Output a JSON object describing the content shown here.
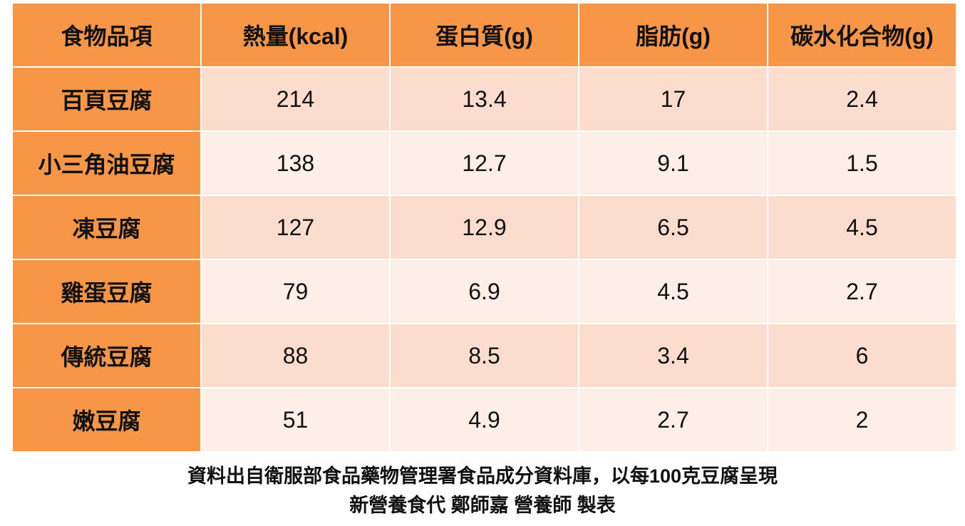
{
  "table": {
    "header": [
      "食物品項",
      "熱量(kcal)",
      "蛋白質(g)",
      "脂肪(g)",
      "碳水化合物(g)"
    ],
    "rows": [
      [
        "百頁豆腐",
        "214",
        "13.4",
        "17",
        "2.4"
      ],
      [
        "小三角油豆腐",
        "138",
        "12.7",
        "9.1",
        "1.5"
      ],
      [
        "凍豆腐",
        "127",
        "12.9",
        "6.5",
        "4.5"
      ],
      [
        "雞蛋豆腐",
        "79",
        "6.9",
        "4.5",
        "2.7"
      ],
      [
        "傳統豆腐",
        "88",
        "8.5",
        "3.4",
        "6"
      ],
      [
        "嫩豆腐",
        "51",
        "4.9",
        "2.7",
        "2"
      ]
    ]
  },
  "footer": {
    "source": "資料出自衛服部食品藥物管理署食品成分資料庫，以每100克豆腐呈現",
    "credit": "新營養食代 鄭師嘉 營養師 製表"
  }
}
